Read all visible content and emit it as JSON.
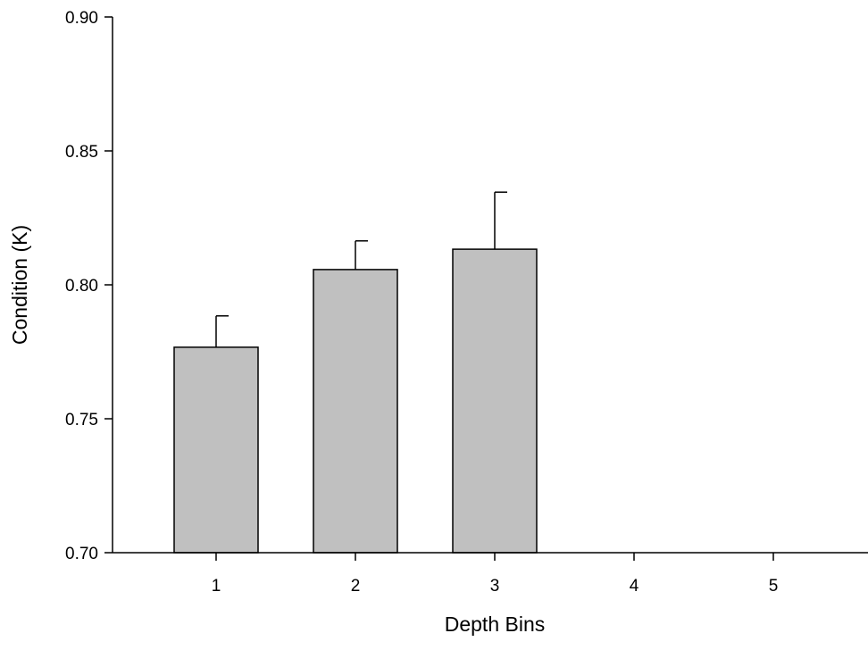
{
  "chart_data": {
    "type": "bar",
    "title": "",
    "xlabel": "Depth Bins",
    "ylabel": "Condition (K)",
    "categories": [
      "1",
      "2",
      "3",
      "4",
      "5"
    ],
    "values": [
      0.7767,
      0.8057,
      0.8133,
      null,
      null
    ],
    "error_upper": [
      0.0117,
      0.0107,
      0.0213,
      null,
      null
    ],
    "ylim": [
      0.7,
      0.9
    ],
    "yticks": [
      "0.70",
      "0.75",
      "0.80",
      "0.85",
      "0.90"
    ],
    "grid": false,
    "legend": "none",
    "bar_color": "#c0c0c0",
    "bar_edge_color": "#000000",
    "axis_color": "#000000"
  }
}
